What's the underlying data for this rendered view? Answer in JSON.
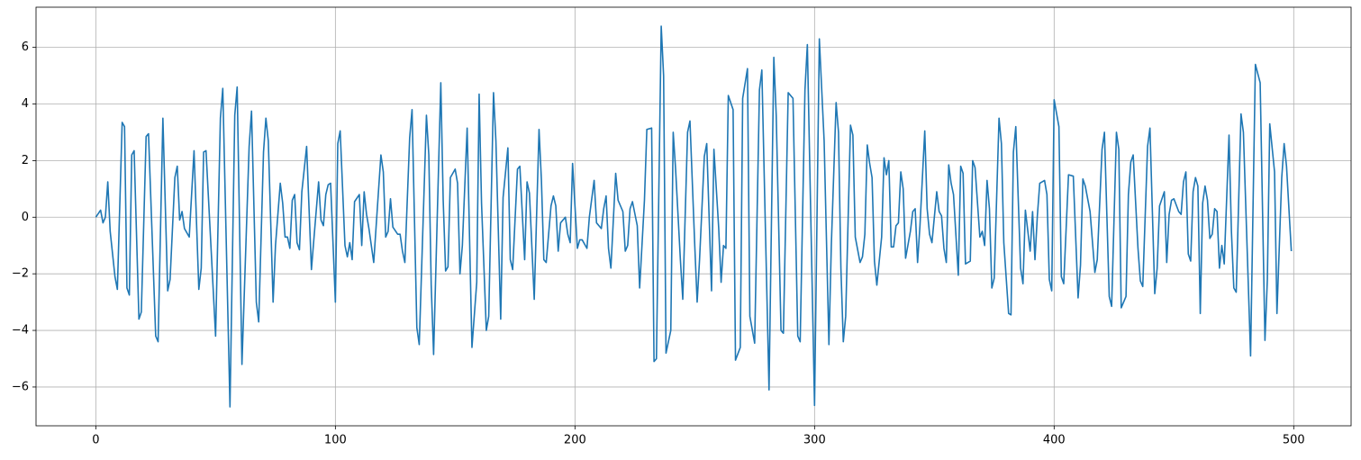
{
  "chart_data": {
    "type": "line",
    "color": "#1f77b4",
    "grid": true,
    "xlim": [
      -24.95,
      523.95
    ],
    "ylim": [
      -7.37,
      7.42
    ],
    "xticks": [
      0,
      100,
      200,
      300,
      400,
      500
    ],
    "yticks": [
      {
        "value": -6,
        "label": "−6"
      },
      {
        "value": -4,
        "label": "−4"
      },
      {
        "value": -2,
        "label": "−2"
      },
      0,
      2,
      4,
      6
    ],
    "x": [
      0,
      2,
      3,
      4,
      5,
      6,
      8,
      9,
      11,
      12,
      13,
      14,
      15,
      16,
      18,
      19,
      21,
      22,
      25,
      26,
      28,
      30,
      31,
      33,
      34,
      35,
      36,
      37,
      39,
      41,
      43,
      44,
      45,
      46,
      50,
      52,
      53,
      56,
      58,
      59,
      61,
      64,
      65,
      67,
      68,
      70,
      71,
      72,
      74,
      75,
      77,
      78,
      79,
      80,
      81,
      82,
      83,
      84,
      85,
      86,
      88,
      90,
      91,
      93,
      94,
      95,
      96,
      97,
      98,
      100,
      101,
      102,
      104,
      105,
      106,
      107,
      108,
      110,
      111,
      112,
      113,
      114,
      116,
      119,
      120,
      121,
      122,
      123,
      124,
      126,
      127,
      128,
      129,
      131,
      132,
      134,
      135,
      138,
      139,
      140,
      141,
      144,
      145,
      146,
      147,
      148,
      150,
      151,
      152,
      153,
      155,
      157,
      159,
      160,
      161,
      163,
      164,
      166,
      167,
      169,
      170,
      172,
      173,
      174,
      176,
      177,
      179,
      180,
      181,
      183,
      185,
      186,
      187,
      188,
      190,
      191,
      192,
      193,
      194,
      196,
      197,
      198,
      199,
      201,
      202,
      203,
      205,
      206,
      208,
      209,
      211,
      212,
      213,
      214,
      215,
      217,
      218,
      220,
      221,
      222,
      223,
      224,
      226,
      227,
      229,
      230,
      232,
      233,
      234,
      236,
      237,
      238,
      240,
      241,
      242,
      244,
      245,
      247,
      248,
      250,
      251,
      252,
      254,
      255,
      257,
      258,
      260,
      261,
      262,
      263,
      264,
      266,
      267,
      269,
      270,
      272,
      273,
      275,
      277,
      278,
      281,
      283,
      284,
      286,
      287,
      289,
      291,
      293,
      294,
      296,
      297,
      300,
      302,
      304,
      306,
      307,
      309,
      310,
      311,
      312,
      313,
      315,
      316,
      317,
      319,
      320,
      321,
      322,
      323,
      324,
      325,
      326,
      328,
      329,
      330,
      331,
      332,
      333,
      334,
      335,
      336,
      337,
      338,
      340,
      341,
      342,
      343,
      344,
      346,
      347,
      348,
      349,
      351,
      352,
      353,
      354,
      355,
      356,
      357,
      358,
      360,
      361,
      362,
      363,
      365,
      366,
      367,
      369,
      370,
      371,
      372,
      373,
      374,
      375,
      377,
      378,
      379,
      381,
      382,
      383,
      384,
      386,
      387,
      388,
      390,
      391,
      392,
      393,
      394,
      396,
      397,
      398,
      399,
      400,
      402,
      403,
      404,
      406,
      408,
      410,
      411,
      412,
      413,
      415,
      417,
      418,
      420,
      421,
      423,
      424,
      426,
      427,
      428,
      430,
      431,
      432,
      433,
      435,
      436,
      437,
      439,
      440,
      442,
      443,
      444,
      446,
      447,
      448,
      449,
      450,
      452,
      453,
      454,
      455,
      456,
      457,
      458,
      459,
      460,
      461,
      462,
      463,
      464,
      465,
      466,
      467,
      468,
      469,
      470,
      471,
      473,
      474,
      475,
      476,
      478,
      479,
      482,
      484,
      486,
      488,
      489,
      490,
      492,
      493,
      495,
      496,
      497,
      499
    ],
    "values": [
      0,
      0.25,
      -0.2,
      0,
      1.25,
      -0.5,
      -2.1,
      -2.55,
      3.35,
      3.2,
      -2.5,
      -2.75,
      2.2,
      2.35,
      -3.6,
      -3.35,
      2.85,
      2.95,
      -4.2,
      -4.4,
      3.5,
      -2.6,
      -2.2,
      1.4,
      1.8,
      -0.1,
      0.2,
      -0.4,
      -0.7,
      2.35,
      -2.55,
      -1.8,
      2.3,
      2.35,
      -4.2,
      3.5,
      4.55,
      -6.7,
      3.6,
      4.6,
      -5.2,
      2.5,
      3.75,
      -3,
      -3.7,
      2.3,
      3.5,
      2.7,
      -3,
      -1,
      1.2,
      0.5,
      -0.7,
      -0.7,
      -1.1,
      0.6,
      0.8,
      -0.9,
      -1.15,
      0.9,
      2.5,
      -1.85,
      -0.8,
      1.25,
      -0.1,
      -0.3,
      0.8,
      1.15,
      1.2,
      -3,
      2.6,
      3.05,
      -1,
      -1.4,
      -0.9,
      -1.5,
      0.55,
      0.8,
      -1,
      0.9,
      0.1,
      -0.4,
      -1.6,
      2.2,
      1.6,
      -0.7,
      -0.5,
      0.65,
      -0.35,
      -0.6,
      -0.6,
      -1.2,
      -1.6,
      2.8,
      3.8,
      -3.9,
      -4.5,
      3.6,
      2.2,
      -2.4,
      -4.85,
      4.75,
      0.6,
      -1.9,
      -1.75,
      1.4,
      1.7,
      1.2,
      -2,
      -1,
      3.15,
      -4.6,
      -2.3,
      4.35,
      0.5,
      -4,
      -3.5,
      4.4,
      2.7,
      -3.6,
      0.7,
      2.45,
      -1.5,
      -1.85,
      1.7,
      1.8,
      -1.5,
      1.25,
      0.85,
      -2.9,
      3.1,
      1.3,
      -1.5,
      -1.6,
      0.4,
      0.75,
      0.4,
      -1.2,
      -0.2,
      0,
      -0.6,
      -0.9,
      1.9,
      -1.1,
      -0.8,
      -0.8,
      -1.1,
      0,
      1.3,
      -0.2,
      -0.4,
      0.3,
      0.75,
      -1.1,
      -1.8,
      1.55,
      0.6,
      0.2,
      -1.2,
      -1,
      0.3,
      0.55,
      -0.3,
      -2.5,
      0.6,
      3.1,
      3.15,
      -5.1,
      -5,
      6.75,
      5,
      -4.8,
      -4,
      3,
      1.7,
      -1.5,
      -2.9,
      3,
      3.4,
      -1,
      -3,
      -1.5,
      2.15,
      2.6,
      -2.6,
      2.4,
      -0.4,
      -2.3,
      -1,
      -1.1,
      4.3,
      3.8,
      -5.05,
      -4.6,
      4.2,
      5.25,
      -3.5,
      -4.45,
      4.5,
      5.2,
      -6.1,
      5.65,
      3.6,
      -4,
      -4.1,
      4.4,
      4.2,
      -4.2,
      -4.4,
      4.5,
      6.1,
      -6.65,
      6.3,
      2.7,
      -4.5,
      -1,
      4.05,
      3,
      -1.8,
      -4.4,
      -3.5,
      3.25,
      2.9,
      -0.7,
      -1.6,
      -1.4,
      -0.6,
      2.55,
      1.9,
      1.4,
      -1.55,
      -2.4,
      -0.7,
      2.1,
      1.5,
      2,
      -1.05,
      -1.05,
      -0.3,
      -0.2,
      1.6,
      1,
      -1.45,
      -0.5,
      0.2,
      0.3,
      -1.6,
      -0.3,
      3.05,
      0.3,
      -0.6,
      -0.9,
      0.9,
      0.2,
      0.05,
      -1.1,
      -1.6,
      1.85,
      1.2,
      0.8,
      -2.05,
      1.8,
      1.55,
      -1.65,
      -1.55,
      2,
      1.75,
      -0.7,
      -0.5,
      -1,
      1.3,
      0.3,
      -2.5,
      -2.15,
      3.5,
      2.6,
      -0.9,
      -3.4,
      -3.45,
      2.3,
      3.2,
      -1.8,
      -2.35,
      0.25,
      -1.2,
      0.2,
      -1.5,
      0.05,
      1.2,
      1.3,
      0.8,
      -2.2,
      -2.6,
      4.15,
      3.2,
      -2.1,
      -2.35,
      1.5,
      1.45,
      -2.85,
      -1.7,
      1.35,
      1.1,
      0.2,
      -1.95,
      -1.5,
      2.4,
      3,
      -2.8,
      -3.15,
      3,
      2.4,
      -3.2,
      -2.8,
      0.8,
      1.95,
      2.2,
      -1.1,
      -2.25,
      -2.45,
      2.5,
      3.15,
      -2.7,
      -1.8,
      0.4,
      0.9,
      -1.6,
      0.1,
      0.6,
      0.65,
      0.2,
      0.1,
      1.25,
      1.6,
      -1.3,
      -1.55,
      0.9,
      1.4,
      1.1,
      -3.4,
      0.5,
      1.1,
      0.6,
      -0.75,
      -0.6,
      0.3,
      0.2,
      -1.8,
      -1,
      -1.65,
      2.9,
      -0.5,
      -2.5,
      -2.65,
      3.65,
      3,
      -4.9,
      5.4,
      4.75,
      -4.35,
      -2.2,
      3.3,
      1.6,
      -3.4,
      1.4,
      2.6,
      1.8,
      -1.2
    ]
  }
}
